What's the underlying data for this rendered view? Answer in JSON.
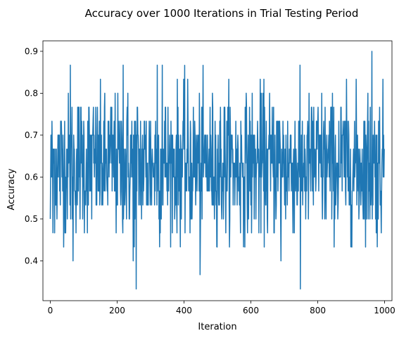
{
  "chart_data": {
    "type": "line",
    "title": "Accuracy over 1000 Iterations in Trial Testing Period",
    "xlabel": "Iteration",
    "ylabel": "Accuracy",
    "xlim": [
      -22,
      1022
    ],
    "ylim": [
      0.305,
      0.925
    ],
    "xticks": [
      0,
      200,
      400,
      600,
      800,
      1000
    ],
    "yticks": [
      0.4,
      0.5,
      0.6,
      0.7,
      0.8,
      0.9
    ],
    "grid": false,
    "legend": "none",
    "color": "#1f77b4",
    "series": [
      {
        "n_points": 1000,
        "x_start": 0,
        "x_end": 999,
        "mean": 0.63,
        "std": 0.085,
        "min": 0.333,
        "max": 0.9,
        "notable_points": [
          {
            "x": 0,
            "y": 0.5
          },
          {
            "x": 3,
            "y": 0.667
          },
          {
            "x": 8,
            "y": 0.467
          },
          {
            "x": 60,
            "y": 0.867
          },
          {
            "x": 68,
            "y": 0.4
          },
          {
            "x": 218,
            "y": 0.867
          },
          {
            "x": 248,
            "y": 0.4
          },
          {
            "x": 257,
            "y": 0.333
          },
          {
            "x": 320,
            "y": 0.867
          },
          {
            "x": 335,
            "y": 0.867
          },
          {
            "x": 448,
            "y": 0.367
          },
          {
            "x": 690,
            "y": 0.4
          },
          {
            "x": 748,
            "y": 0.333
          },
          {
            "x": 962,
            "y": 0.9
          },
          {
            "x": 999,
            "y": 0.667
          }
        ]
      }
    ]
  }
}
